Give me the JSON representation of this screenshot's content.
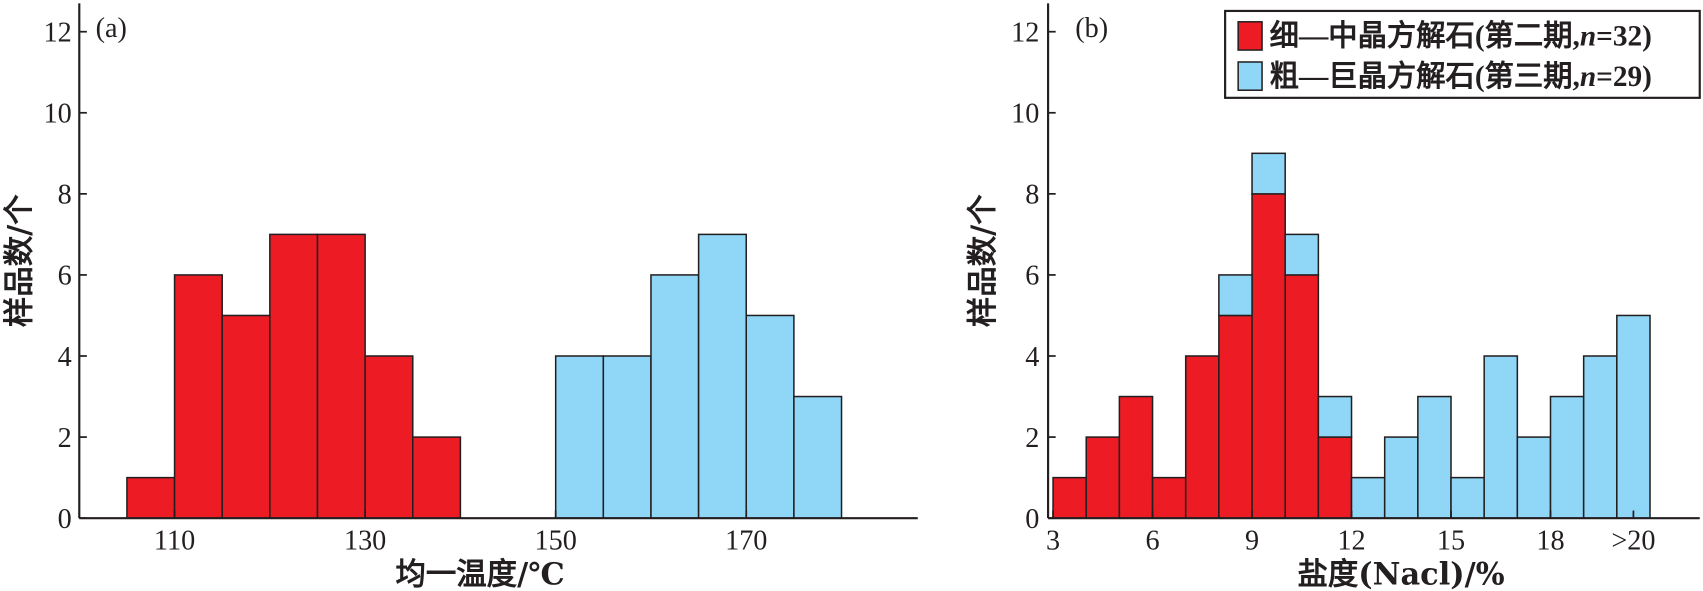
{
  "chart_data": [
    {
      "type": "bar",
      "panel_label": "(a)",
      "xlabel": "均一温度/℃",
      "ylabel": "样品数/个",
      "xlim": [
        100,
        188
      ],
      "ylim": [
        0,
        12.7
      ],
      "bin_width": 5,
      "grid": false,
      "yticks": [
        0,
        2,
        4,
        6,
        8,
        10,
        12
      ],
      "xticks": [
        {
          "value": 110,
          "label": "110"
        },
        {
          "value": 130,
          "label": "130"
        },
        {
          "value": 150,
          "label": "150"
        },
        {
          "value": 170,
          "label": "170"
        }
      ],
      "series": [
        {
          "name": "细—中晶方解石(第二期,n=32)",
          "color": "#ed1c24",
          "bin_start": [
            105,
            110,
            115,
            120,
            125,
            130,
            135
          ],
          "values": [
            1,
            6,
            5,
            7,
            7,
            4,
            2
          ]
        },
        {
          "name": "粗—巨晶方解石(第三期,n=29)",
          "color": "#8fd6f7",
          "bin_start": [
            150,
            155,
            160,
            165,
            170,
            175
          ],
          "values": [
            4,
            4,
            6,
            7,
            5,
            3
          ]
        }
      ]
    },
    {
      "type": "bar",
      "stacked": true,
      "panel_label": "(b)",
      "xlabel": "盐度(Nacl)/%",
      "ylabel": "样品数/个",
      "xlim": [
        2.85,
        22.5
      ],
      "ylim": [
        0,
        12.7
      ],
      "bin_width": 1,
      "grid": false,
      "legend": "top-right",
      "yticks": [
        0,
        2,
        4,
        6,
        8,
        10,
        12
      ],
      "xticks": [
        {
          "value": 3,
          "label": "3"
        },
        {
          "value": 6,
          "label": "6"
        },
        {
          "value": 9,
          "label": "9"
        },
        {
          "value": 12,
          "label": "12"
        },
        {
          "value": 15,
          "label": "15"
        },
        {
          "value": 18,
          "label": "18"
        },
        {
          "value": 20.5,
          "label": ">20"
        }
      ],
      "series": [
        {
          "name": "细—中晶方解石(第二期,n=32)",
          "color": "#ed1c24",
          "bin_start": [
            3,
            4,
            5,
            6,
            7,
            8,
            9,
            10,
            11
          ],
          "values": [
            1,
            2,
            3,
            1,
            4,
            5,
            8,
            6,
            2
          ]
        },
        {
          "name": "粗—巨晶方解石(第三期,n=29)",
          "color": "#8fd6f7",
          "bin_start": [
            8,
            9,
            10,
            11,
            12,
            13,
            14,
            15,
            16,
            17,
            18,
            19,
            20
          ],
          "values": [
            1,
            1,
            1,
            1,
            1,
            2,
            3,
            1,
            4,
            2,
            3,
            4,
            5
          ]
        }
      ]
    }
  ]
}
